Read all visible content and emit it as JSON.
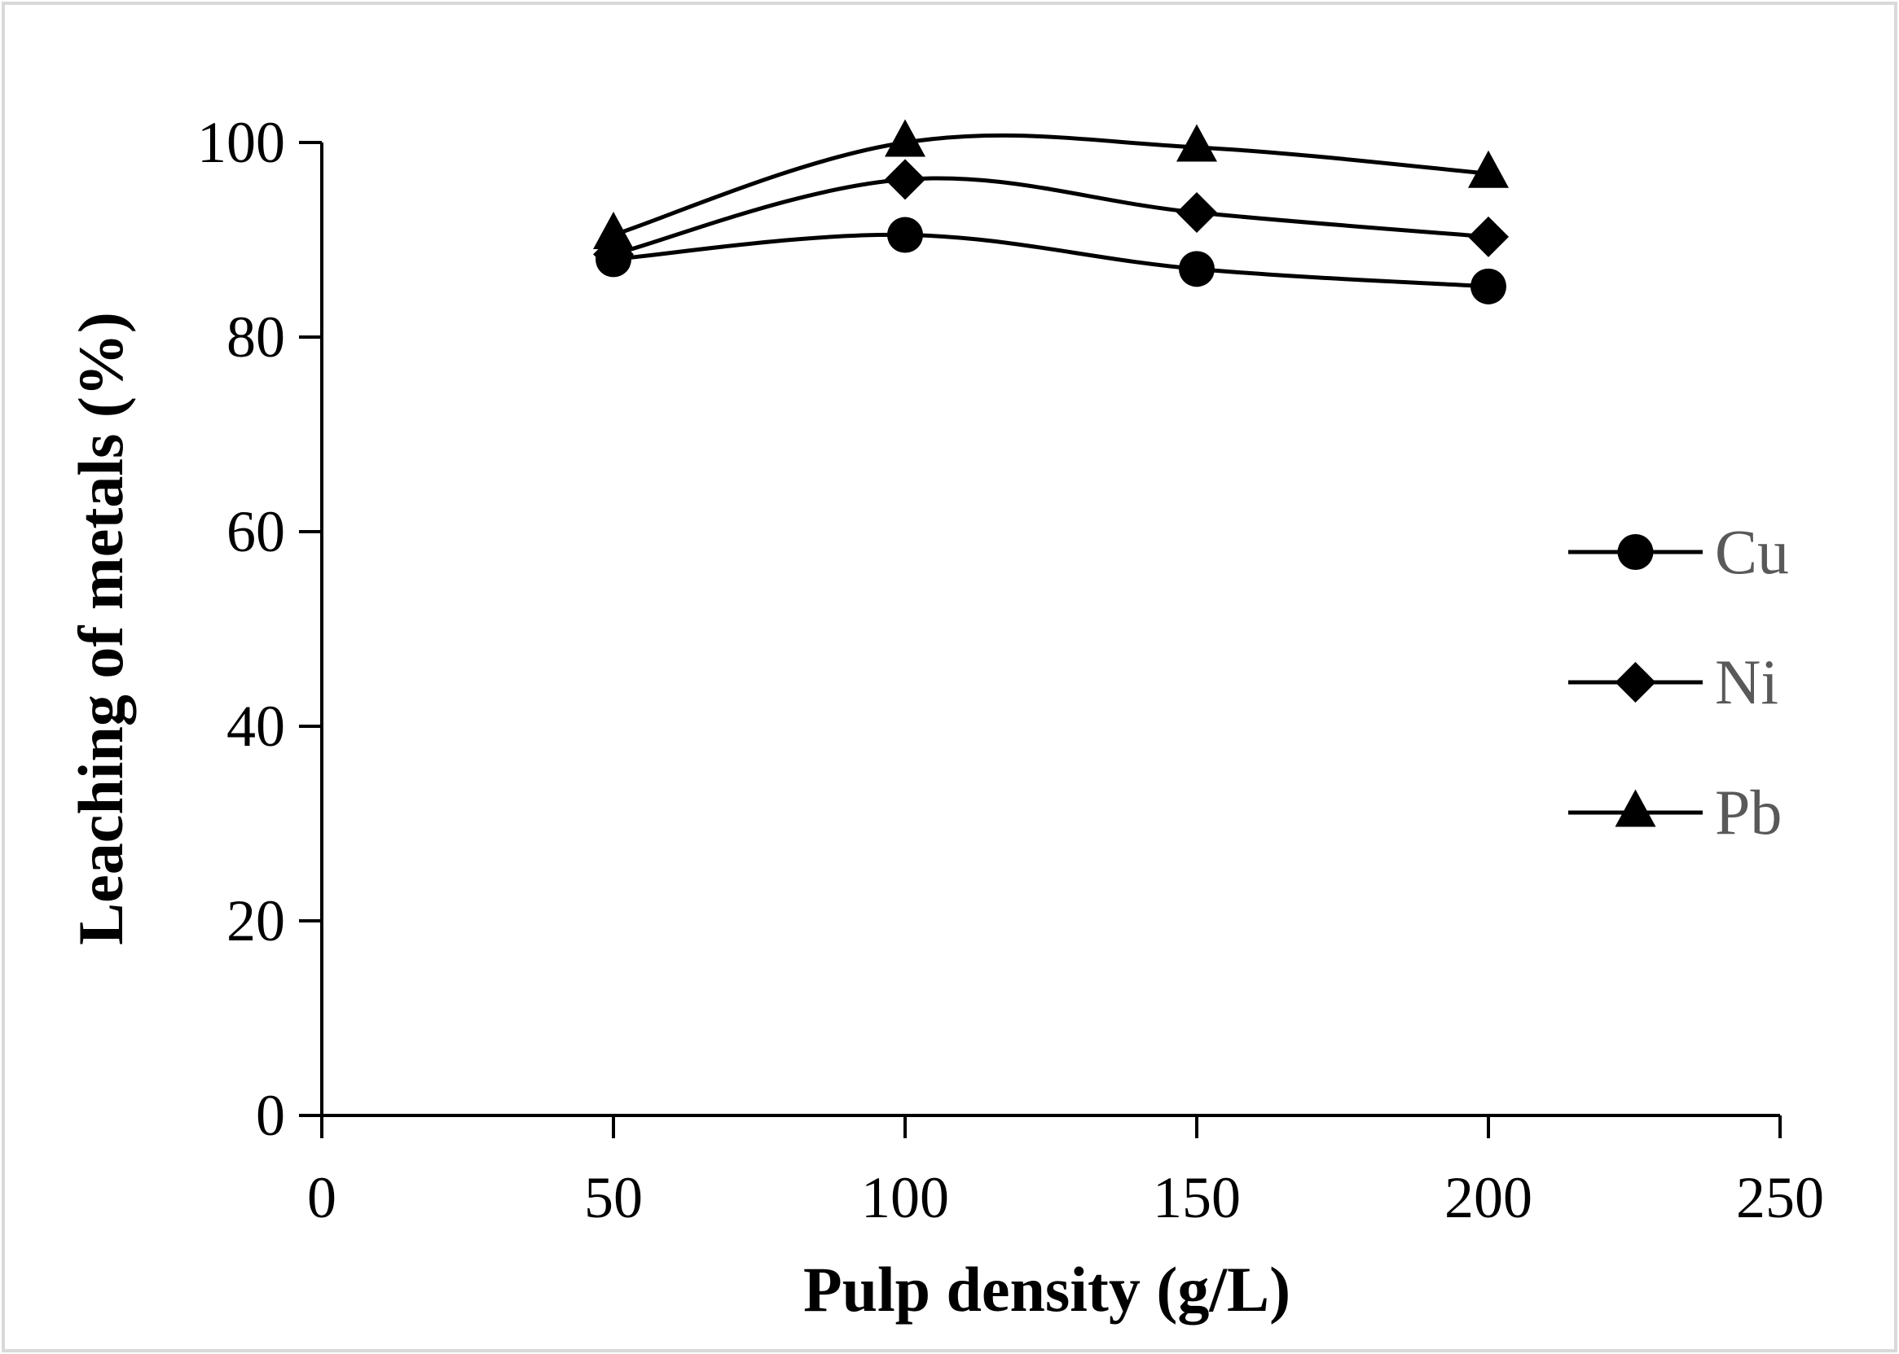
{
  "chart_data": {
    "type": "line",
    "xlabel": "Pulp density (g/L)",
    "ylabel": "Leaching of metals (%)",
    "xlim": [
      0,
      250
    ],
    "ylim": [
      0,
      100
    ],
    "xticks": [
      "0",
      "50",
      "100",
      "150",
      "200",
      "250"
    ],
    "yticks": [
      "0",
      "20",
      "40",
      "60",
      "80",
      "100"
    ],
    "grid": false,
    "smoothed": true,
    "legend_position": "right",
    "x": [
      50,
      100,
      150,
      200
    ],
    "series": [
      {
        "name": "Cu",
        "marker": "circle",
        "values": [
          88,
          90.5,
          87,
          85.2
        ]
      },
      {
        "name": "Ni",
        "marker": "diamond",
        "values": [
          88.5,
          96.2,
          92.8,
          90.3
        ]
      },
      {
        "name": "Pb",
        "marker": "triangle",
        "values": [
          90.5,
          100,
          99.5,
          96.8
        ]
      }
    ],
    "colors": {
      "line": "#000000",
      "marker": "#000000",
      "legend_text": "#595959",
      "frame": "#d9d9d9"
    }
  }
}
